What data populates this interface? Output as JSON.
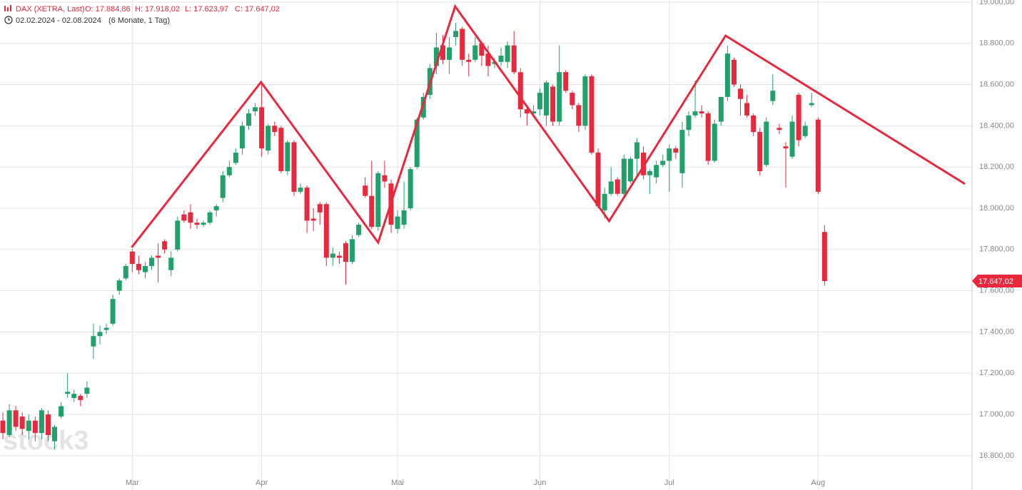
{
  "chart_data": {
    "type": "candlestick",
    "title": "DAX (XETRA, Last)",
    "ohlc_labels": [
      "O: 17.884,86",
      "H: 17.918,02",
      "L: 17.623,97",
      "C: 17.647,02"
    ],
    "subtitle": "02.02.2024 - 02.08.2024",
    "period": "(6 Monate, 1 Tag)",
    "watermark": "stock3",
    "categories": [
      null,
      null,
      null,
      null,
      null,
      null,
      null,
      null,
      null,
      null,
      null,
      null,
      null,
      null,
      null,
      null,
      null,
      null,
      null,
      null,
      "Mar",
      null,
      null,
      null,
      null,
      null,
      null,
      null,
      null,
      null,
      null,
      null,
      null,
      null,
      null,
      null,
      null,
      null,
      null,
      null,
      "Apr",
      null,
      null,
      null,
      null,
      null,
      null,
      null,
      null,
      null,
      null,
      null,
      null,
      null,
      null,
      null,
      null,
      null,
      null,
      null,
      null,
      "Mai",
      null,
      null,
      null,
      null,
      null,
      null,
      null,
      null,
      null,
      null,
      null,
      null,
      null,
      null,
      null,
      null,
      null,
      null,
      null,
      null,
      null,
      "Jun",
      null,
      null,
      null,
      null,
      null,
      null,
      null,
      null,
      null,
      null,
      null,
      null,
      null,
      null,
      null,
      null,
      null,
      null,
      null,
      "Jul",
      null,
      null,
      null,
      null,
      null,
      null,
      null,
      null,
      null,
      null,
      null,
      null,
      null,
      null,
      null,
      null,
      null,
      null,
      null,
      null,
      null,
      null,
      "Aug",
      null
    ],
    "open": [
      16970,
      16900,
      17020,
      16990,
      16920,
      16970,
      16910,
      17000,
      16870,
      16990,
      17100,
      17080,
      17090,
      17100,
      17330,
      17380,
      17410,
      17440,
      17600,
      17660,
      17790,
      17730,
      17690,
      17720,
      17770,
      17840,
      17700,
      17800,
      17970,
      17980,
      17930,
      17920,
      17930,
      17990,
      18050,
      18160,
      18220,
      18290,
      18400,
      18470,
      18490,
      18280,
      18400,
      18390,
      18180,
      18320,
      18080,
      18100,
      17950,
      18020,
      18020,
      17760,
      17770,
      17830,
      17740,
      17870,
      18110,
      18060,
      17910,
      18160,
      18120,
      17900,
      17920,
      18000,
      18200,
      18440,
      18550,
      18690,
      18790,
      18720,
      18830,
      18870,
      18720,
      18720,
      18800,
      18750,
      18700,
      18710,
      18710,
      18790,
      18660,
      18480,
      18460,
      18480,
      18450,
      18590,
      18420,
      18660,
      18560,
      18500,
      18400,
      18640,
      18270,
      17990,
      18070,
      18140,
      18070,
      18130,
      18240,
      18270,
      18160,
      18150,
      18210,
      18230,
      18290,
      18170,
      18380,
      18450,
      18470,
      18460,
      18230,
      18420,
      18540,
      18720,
      18580,
      18510,
      18450,
      18370,
      18210,
      18520,
      18390,
      18300,
      18250,
      18550,
      18350,
      18500,
      18430,
      17884.86
    ],
    "high": [
      17010,
      17050,
      17040,
      17010,
      17000,
      16990,
      17030,
      17020,
      16950,
      17060,
      17200,
      17120,
      17100,
      17160,
      17440,
      17430,
      17440,
      17580,
      17660,
      17730,
      17800,
      17770,
      17740,
      17770,
      17830,
      17850,
      17790,
      17960,
      17990,
      18020,
      17950,
      17940,
      17990,
      18020,
      18180,
      18230,
      18290,
      18420,
      18480,
      18510,
      18600,
      18410,
      18420,
      18400,
      18330,
      18330,
      18120,
      18110,
      18000,
      18030,
      18030,
      17810,
      17790,
      17840,
      17870,
      17930,
      18150,
      18230,
      18180,
      18230,
      18140,
      17990,
      18130,
      18200,
      18440,
      18560,
      18700,
      18850,
      18840,
      18830,
      18900,
      18880,
      18750,
      18830,
      18810,
      18790,
      18730,
      18780,
      18810,
      18860,
      18680,
      18500,
      18500,
      18580,
      18620,
      18600,
      18790,
      18670,
      18570,
      18510,
      18650,
      18650,
      18290,
      18100,
      18200,
      18150,
      18260,
      18250,
      18340,
      18300,
      18190,
      18230,
      18260,
      18310,
      18300,
      18420,
      18470,
      18620,
      18500,
      18470,
      18430,
      18540,
      18790,
      18730,
      18600,
      18550,
      18460,
      18390,
      18440,
      18650,
      18410,
      18320,
      18450,
      18560,
      18420,
      18560,
      18440,
      17918.02
    ],
    "low": [
      16880,
      16890,
      16920,
      16900,
      16880,
      16870,
      16880,
      16870,
      16830,
      16980,
      17080,
      17060,
      17040,
      17080,
      17270,
      17340,
      17390,
      17430,
      17580,
      17650,
      17690,
      17680,
      17660,
      17700,
      17640,
      17780,
      17670,
      17790,
      17930,
      17900,
      17900,
      17910,
      17920,
      17960,
      18030,
      18150,
      18210,
      18260,
      18380,
      18450,
      18250,
      18260,
      18350,
      18170,
      18160,
      18060,
      18070,
      17880,
      17890,
      17920,
      17720,
      17720,
      17730,
      17630,
      17730,
      17860,
      18050,
      17900,
      17890,
      18100,
      17880,
      17880,
      17900,
      17990,
      18190,
      18430,
      18530,
      18650,
      18700,
      18650,
      18790,
      18690,
      18640,
      18710,
      18690,
      18640,
      18680,
      18690,
      18680,
      18650,
      18440,
      18400,
      18440,
      18450,
      18400,
      18400,
      18400,
      18560,
      18480,
      18370,
      18380,
      18260,
      18000,
      17950,
      18060,
      18060,
      18060,
      18120,
      18150,
      18140,
      18070,
      18120,
      18200,
      18080,
      18240,
      18100,
      18350,
      18440,
      18440,
      18210,
      18220,
      18400,
      18520,
      18590,
      18450,
      18440,
      18350,
      18160,
      18200,
      18500,
      18360,
      18100,
      18240,
      18300,
      18340,
      18490,
      18070,
      17623.97
    ],
    "close": [
      16910,
      17020,
      16940,
      16930,
      16970,
      16910,
      17020,
      16900,
      16940,
      17040,
      17110,
      17100,
      17070,
      17130,
      17380,
      17400,
      17420,
      17560,
      17650,
      17720,
      17730,
      17700,
      17720,
      17760,
      17760,
      17800,
      17760,
      17940,
      17940,
      17930,
      17920,
      17930,
      17980,
      18010,
      18160,
      18200,
      18270,
      18400,
      18460,
      18490,
      18290,
      18400,
      18370,
      18180,
      18320,
      18080,
      18100,
      17940,
      17940,
      17980,
      17760,
      17780,
      17760,
      17740,
      17850,
      17920,
      18060,
      17910,
      18170,
      18130,
      17920,
      17960,
      17990,
      18190,
      18430,
      18540,
      18680,
      18780,
      18720,
      18780,
      18860,
      18720,
      18710,
      18790,
      18740,
      18690,
      18710,
      18740,
      18790,
      18660,
      18480,
      18460,
      18470,
      18560,
      18610,
      18420,
      18660,
      18570,
      18500,
      18400,
      18640,
      18270,
      18010,
      18070,
      18130,
      18070,
      18240,
      18240,
      18320,
      18160,
      18180,
      18210,
      18230,
      18290,
      18270,
      18380,
      18450,
      18470,
      18460,
      18230,
      18410,
      18540,
      18750,
      18600,
      18530,
      18450,
      18370,
      18180,
      18420,
      18570,
      18380,
      18290,
      18420,
      18330,
      18400,
      18510,
      18080,
      17647.02
    ],
    "up_color": "#22a06b",
    "down_color": "#e8283c",
    "ylim": [
      16727,
      19010
    ],
    "yticks": [
      {
        "value": 16800,
        "label": "16.800,00"
      },
      {
        "value": 17000,
        "label": "17.000,00"
      },
      {
        "value": 17200,
        "label": "17.200,00"
      },
      {
        "value": 17400,
        "label": "17.400,00"
      },
      {
        "value": 17600,
        "label": "17.600,00"
      },
      {
        "value": 17800,
        "label": "17.800,00"
      },
      {
        "value": 18000,
        "label": "18.000,00"
      },
      {
        "value": 18200,
        "label": "18.200,00"
      },
      {
        "value": 18400,
        "label": "18.400,00"
      },
      {
        "value": 18600,
        "label": "18.600,00"
      },
      {
        "value": 18800,
        "label": "18.800,00"
      },
      {
        "value": 19000,
        "label": "19.000,00"
      }
    ],
    "grid": true,
    "overlay": {
      "color": "#e8283c",
      "x": [
        19.9,
        39.9,
        58,
        69.9,
        93.7,
        111.7,
        148.7
      ],
      "values": [
        17810,
        18612,
        17834,
        18979,
        17938,
        18837,
        18118
      ]
    },
    "last_price": {
      "value": 17647.02,
      "label": "17.647,02"
    }
  }
}
